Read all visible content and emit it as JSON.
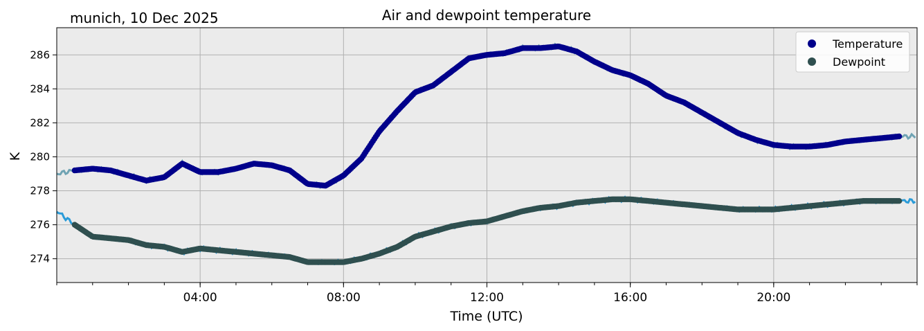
{
  "chart_data": {
    "type": "scatter",
    "title": "Air and dewpoint temperature",
    "subtitle": "munich, 10 Dec 2025",
    "xlabel": "Time (UTC)",
    "ylabel": "K",
    "xlim": [
      "00:00",
      "24:00"
    ],
    "ylim": [
      272.6,
      287.6
    ],
    "x_ticks": [
      "04:00",
      "08:00",
      "12:00",
      "16:00",
      "20:00"
    ],
    "y_ticks": [
      274,
      276,
      278,
      280,
      282,
      284,
      286
    ],
    "grid": true,
    "background": "#ebebeb",
    "legend": {
      "position": "top-right",
      "entries": [
        {
          "label": "Temperature",
          "color": "#00008b"
        },
        {
          "label": "Dewpoint",
          "color": "#2f4f4f"
        }
      ]
    },
    "series": [
      {
        "name": "Temperature",
        "color": "#00008b",
        "raw_color": "#6fa3b3",
        "x": [
          "00:00",
          "00:30",
          "01:00",
          "01:30",
          "02:00",
          "02:30",
          "03:00",
          "03:30",
          "04:00",
          "04:30",
          "05:00",
          "05:30",
          "06:00",
          "06:30",
          "07:00",
          "07:30",
          "08:00",
          "08:30",
          "09:00",
          "09:30",
          "10:00",
          "10:30",
          "11:00",
          "11:30",
          "12:00",
          "12:30",
          "13:00",
          "13:30",
          "14:00",
          "14:30",
          "15:00",
          "15:30",
          "16:00",
          "16:30",
          "17:00",
          "17:30",
          "18:00",
          "18:30",
          "19:00",
          "19:30",
          "20:00",
          "20:30",
          "21:00",
          "21:30",
          "22:00",
          "22:30",
          "23:00",
          "23:30",
          "24:00"
        ],
        "values": [
          279.0,
          279.2,
          279.3,
          279.2,
          278.9,
          278.6,
          278.8,
          279.6,
          279.1,
          279.1,
          279.3,
          279.6,
          279.5,
          279.2,
          278.4,
          278.3,
          278.9,
          279.9,
          281.5,
          282.7,
          283.8,
          284.2,
          285.0,
          285.8,
          286.0,
          286.1,
          286.4,
          286.4,
          286.5,
          286.2,
          285.6,
          285.1,
          284.8,
          284.3,
          283.6,
          283.2,
          282.6,
          282.0,
          281.4,
          281.0,
          280.7,
          280.6,
          280.6,
          280.7,
          280.9,
          281.0,
          281.1,
          281.2,
          281.2
        ]
      },
      {
        "name": "Dewpoint",
        "color": "#2f4f4f",
        "raw_color": "#2a9bd8",
        "x": [
          "00:00",
          "00:30",
          "01:00",
          "01:30",
          "02:00",
          "02:30",
          "03:00",
          "03:30",
          "04:00",
          "04:30",
          "05:00",
          "05:30",
          "06:00",
          "06:30",
          "07:00",
          "07:30",
          "08:00",
          "08:30",
          "09:00",
          "09:30",
          "10:00",
          "10:30",
          "11:00",
          "11:30",
          "12:00",
          "12:30",
          "13:00",
          "13:30",
          "14:00",
          "14:30",
          "15:00",
          "15:30",
          "16:00",
          "16:30",
          "17:00",
          "17:30",
          "18:00",
          "18:30",
          "19:00",
          "19:30",
          "20:00",
          "20:30",
          "21:00",
          "21:30",
          "22:00",
          "22:30",
          "23:00",
          "23:30",
          "24:00"
        ],
        "values": [
          276.8,
          276.0,
          275.3,
          275.2,
          275.1,
          274.8,
          274.7,
          274.4,
          274.6,
          274.5,
          274.4,
          274.3,
          274.2,
          274.1,
          273.8,
          273.8,
          273.8,
          274.0,
          274.3,
          274.7,
          275.3,
          275.6,
          275.9,
          276.1,
          276.2,
          276.5,
          276.8,
          277.0,
          277.1,
          277.3,
          277.4,
          277.5,
          277.5,
          277.4,
          277.3,
          277.2,
          277.1,
          277.0,
          276.9,
          276.9,
          276.9,
          277.0,
          277.1,
          277.2,
          277.3,
          277.4,
          277.4,
          277.4,
          277.4
        ]
      }
    ]
  }
}
